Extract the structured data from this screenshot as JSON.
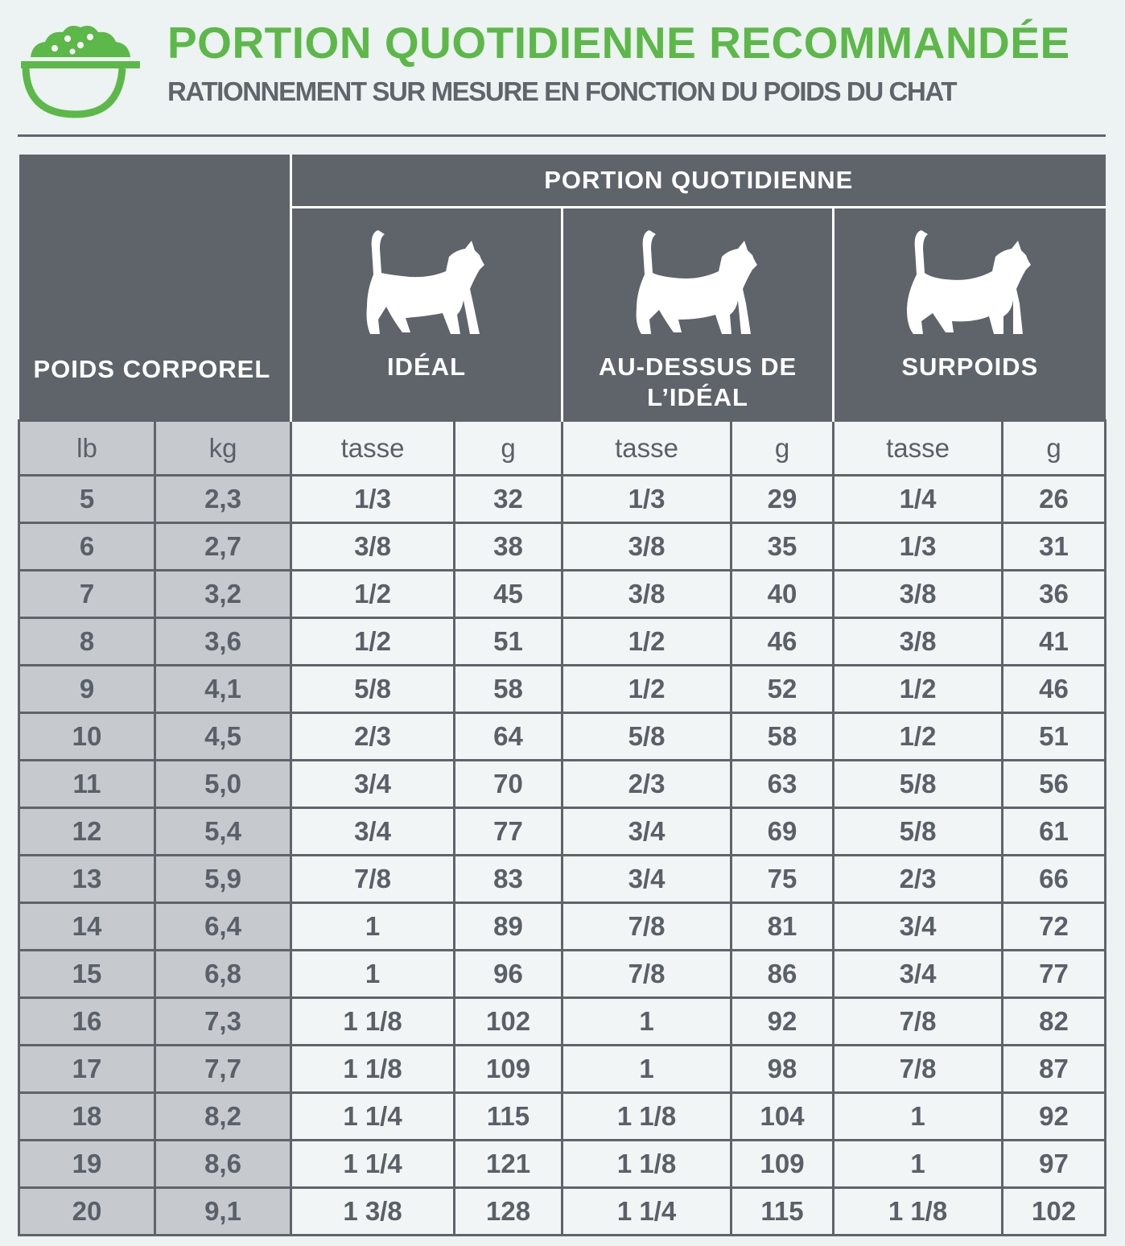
{
  "header": {
    "title": "PORTION QUOTIDIENNE RECOMMANDÉE",
    "subtitle": "RATIONNEMENT SUR MESURE EN FONCTION DU POIDS DU CHAT",
    "icon": "food-bowl-icon",
    "accent_color": "#5cb848"
  },
  "table": {
    "weight_header": "POIDS CORPOREL",
    "portion_header": "PORTION QUOTIDIENNE",
    "categories": [
      {
        "label": "IDÉAL",
        "icon": "cat-ideal-icon"
      },
      {
        "label": "AU-DESSUS DE L’IDÉAL",
        "icon": "cat-above-ideal-icon"
      },
      {
        "label": "SURPOIDS",
        "icon": "cat-overweight-icon"
      }
    ],
    "subheaders": {
      "lb": "lb",
      "kg": "kg",
      "cup": "tasse",
      "g": "g"
    },
    "rows": [
      {
        "lb": "5",
        "kg": "2,3",
        "ideal_cup": "1/3",
        "ideal_g": "32",
        "above_cup": "1/3",
        "above_g": "29",
        "over_cup": "1/4",
        "over_g": "26"
      },
      {
        "lb": "6",
        "kg": "2,7",
        "ideal_cup": "3/8",
        "ideal_g": "38",
        "above_cup": "3/8",
        "above_g": "35",
        "over_cup": "1/3",
        "over_g": "31"
      },
      {
        "lb": "7",
        "kg": "3,2",
        "ideal_cup": "1/2",
        "ideal_g": "45",
        "above_cup": "3/8",
        "above_g": "40",
        "over_cup": "3/8",
        "over_g": "36"
      },
      {
        "lb": "8",
        "kg": "3,6",
        "ideal_cup": "1/2",
        "ideal_g": "51",
        "above_cup": "1/2",
        "above_g": "46",
        "over_cup": "3/8",
        "over_g": "41"
      },
      {
        "lb": "9",
        "kg": "4,1",
        "ideal_cup": "5/8",
        "ideal_g": "58",
        "above_cup": "1/2",
        "above_g": "52",
        "over_cup": "1/2",
        "over_g": "46"
      },
      {
        "lb": "10",
        "kg": "4,5",
        "ideal_cup": "2/3",
        "ideal_g": "64",
        "above_cup": "5/8",
        "above_g": "58",
        "over_cup": "1/2",
        "over_g": "51"
      },
      {
        "lb": "11",
        "kg": "5,0",
        "ideal_cup": "3/4",
        "ideal_g": "70",
        "above_cup": "2/3",
        "above_g": "63",
        "over_cup": "5/8",
        "over_g": "56"
      },
      {
        "lb": "12",
        "kg": "5,4",
        "ideal_cup": "3/4",
        "ideal_g": "77",
        "above_cup": "3/4",
        "above_g": "69",
        "over_cup": "5/8",
        "over_g": "61"
      },
      {
        "lb": "13",
        "kg": "5,9",
        "ideal_cup": "7/8",
        "ideal_g": "83",
        "above_cup": "3/4",
        "above_g": "75",
        "over_cup": "2/3",
        "over_g": "66"
      },
      {
        "lb": "14",
        "kg": "6,4",
        "ideal_cup": "1",
        "ideal_g": "89",
        "above_cup": "7/8",
        "above_g": "81",
        "over_cup": "3/4",
        "over_g": "72"
      },
      {
        "lb": "15",
        "kg": "6,8",
        "ideal_cup": "1",
        "ideal_g": "96",
        "above_cup": "7/8",
        "above_g": "86",
        "over_cup": "3/4",
        "over_g": "77"
      },
      {
        "lb": "16",
        "kg": "7,3",
        "ideal_cup": "1 1/8",
        "ideal_g": "102",
        "above_cup": "1",
        "above_g": "92",
        "over_cup": "7/8",
        "over_g": "82"
      },
      {
        "lb": "17",
        "kg": "7,7",
        "ideal_cup": "1 1/8",
        "ideal_g": "109",
        "above_cup": "1",
        "above_g": "98",
        "over_cup": "7/8",
        "over_g": "87"
      },
      {
        "lb": "18",
        "kg": "8,2",
        "ideal_cup": "1 1/4",
        "ideal_g": "115",
        "above_cup": "1 1/8",
        "above_g": "104",
        "over_cup": "1",
        "over_g": "92"
      },
      {
        "lb": "19",
        "kg": "8,6",
        "ideal_cup": "1 1/4",
        "ideal_g": "121",
        "above_cup": "1 1/8",
        "above_g": "109",
        "over_cup": "1",
        "over_g": "97"
      },
      {
        "lb": "20",
        "kg": "9,1",
        "ideal_cup": "1 3/8",
        "ideal_g": "128",
        "above_cup": "1 1/4",
        "above_g": "115",
        "over_cup": "1 1/8",
        "over_g": "102"
      }
    ]
  },
  "colors": {
    "header_bg": "#5f646b",
    "weight_col_bg": "#c6cacf",
    "cell_bg": "#f2f5f5",
    "page_bg": "#edf2f2",
    "text": "#5a6068"
  }
}
